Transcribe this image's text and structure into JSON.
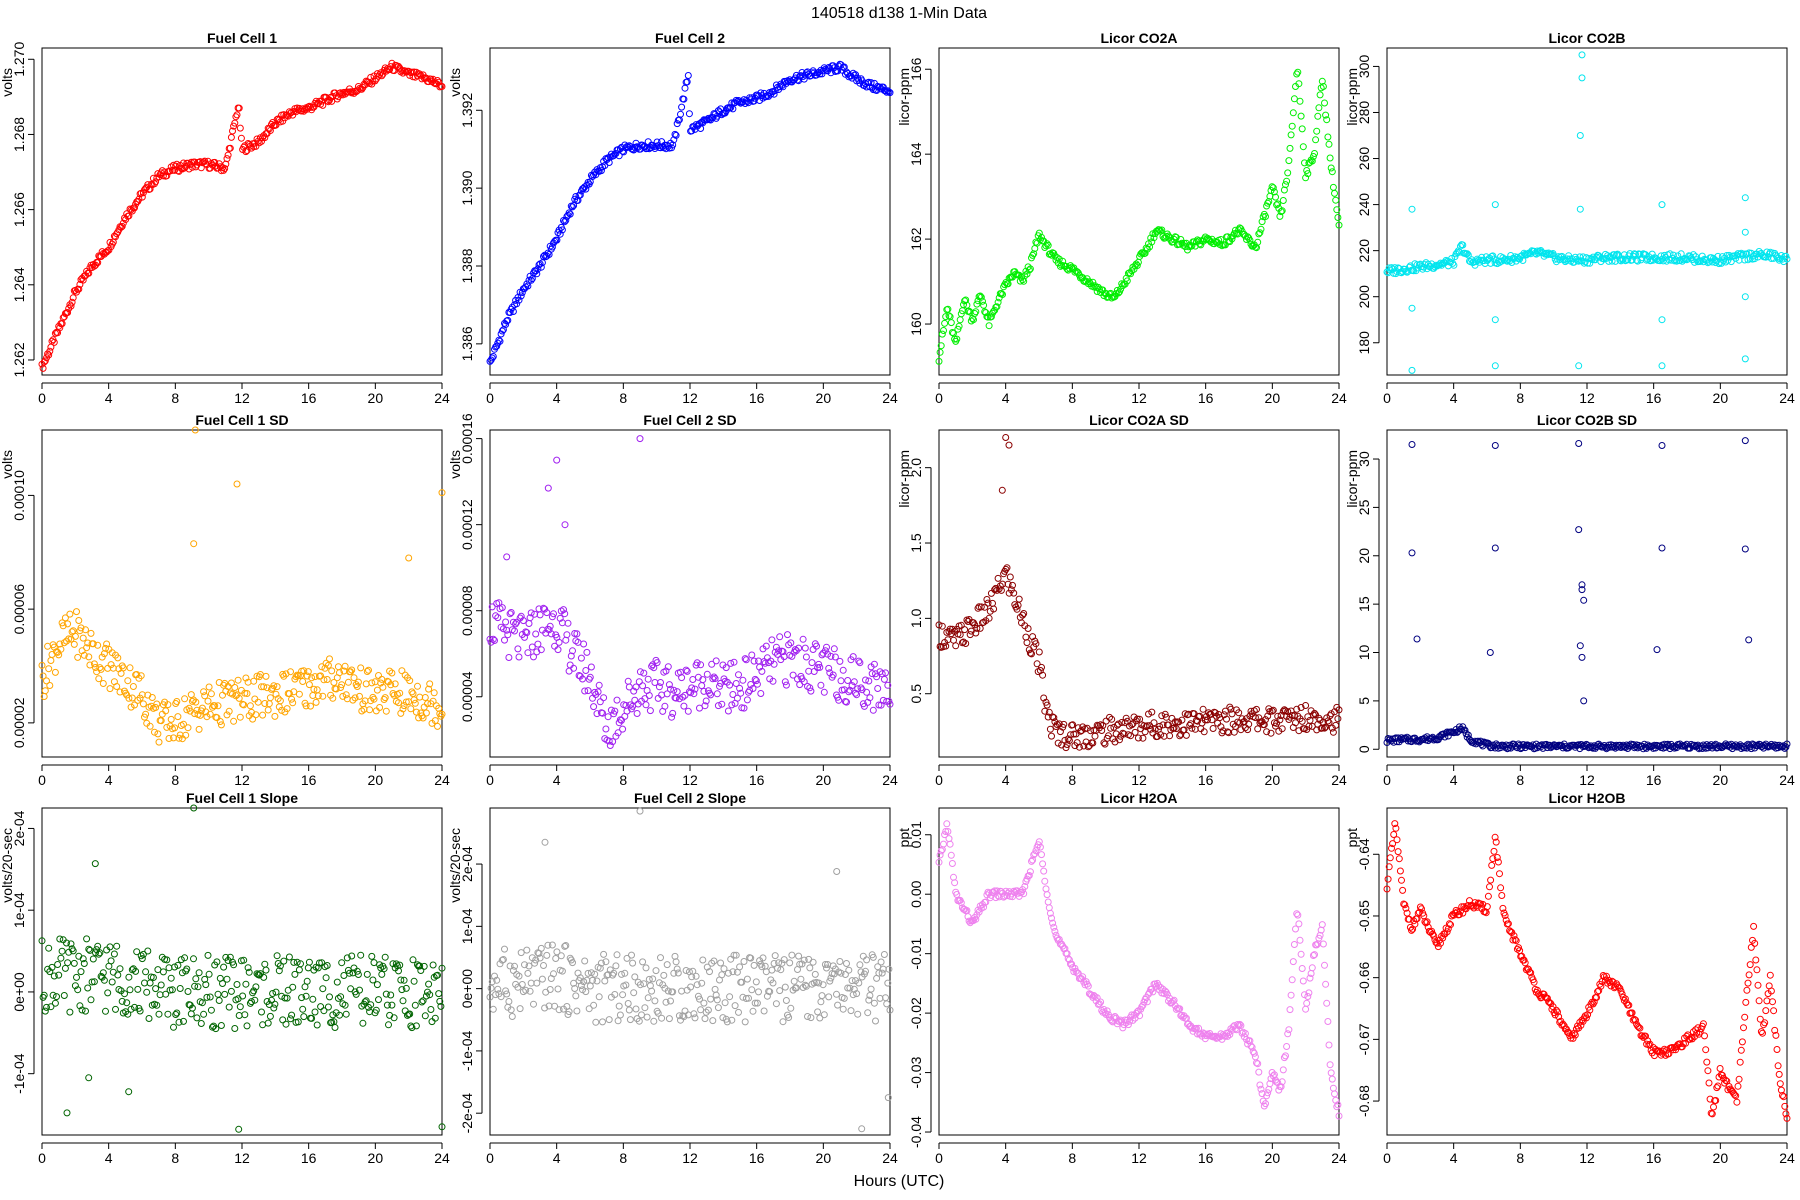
{
  "figure": {
    "title": "140518   d138   1-Min Data",
    "xlabel": "Hours (UTC)"
  },
  "chart_data": [
    {
      "type": "scatter",
      "title": "Fuel Cell 1",
      "ylabel": "volts",
      "xlim": [
        0,
        24
      ],
      "ylim": [
        1.2616,
        1.2703
      ],
      "xticks": [
        0,
        4,
        8,
        12,
        16,
        20,
        24
      ],
      "xtick_labels": [
        "0",
        "4",
        "8",
        "12",
        "16",
        "20",
        "24"
      ],
      "yticks": [
        1.262,
        1.264,
        1.266,
        1.268,
        1.27
      ],
      "ytick_labels": [
        "1.262",
        "1.264",
        "1.266",
        "1.268",
        "1.270"
      ],
      "color": "#ff0000",
      "x": [
        0,
        1,
        2,
        3,
        4,
        5,
        6,
        7,
        8,
        9,
        10,
        11,
        11.8,
        12,
        13,
        14,
        15,
        16,
        17,
        18,
        19,
        20,
        21,
        22,
        23,
        24
      ],
      "y": [
        1.2618,
        1.2628,
        1.2638,
        1.2645,
        1.265,
        1.2658,
        1.2664,
        1.2669,
        1.2671,
        1.2672,
        1.2672,
        1.2671,
        1.2688,
        1.2676,
        1.2678,
        1.2683,
        1.2686,
        1.2687,
        1.2689,
        1.2691,
        1.2692,
        1.2695,
        1.2698,
        1.2696,
        1.2695,
        1.2693
      ]
    },
    {
      "type": "scatter",
      "title": "Fuel Cell 2",
      "ylabel": "volts",
      "xlim": [
        0,
        24
      ],
      "ylim": [
        1.3852,
        1.3936
      ],
      "xticks": [
        0,
        4,
        8,
        12,
        16,
        20,
        24
      ],
      "xtick_labels": [
        "0",
        "4",
        "8",
        "12",
        "16",
        "20",
        "24"
      ],
      "yticks": [
        1.386,
        1.388,
        1.39,
        1.392
      ],
      "ytick_labels": [
        "1.386",
        "1.388",
        "1.390",
        "1.392"
      ],
      "color": "#0000ff",
      "x": [
        0,
        1,
        2,
        3,
        4,
        5,
        6,
        7,
        8,
        9,
        10,
        11,
        11.9,
        12,
        13,
        14,
        15,
        16,
        17,
        18,
        19,
        20,
        21,
        22,
        23,
        24
      ],
      "y": [
        1.3855,
        1.3866,
        1.3874,
        1.388,
        1.3887,
        1.3896,
        1.3902,
        1.3907,
        1.391,
        1.3911,
        1.3911,
        1.3911,
        1.3929,
        1.3915,
        1.3917,
        1.392,
        1.3922,
        1.3923,
        1.3925,
        1.3928,
        1.3929,
        1.393,
        1.3931,
        1.3928,
        1.3926,
        1.3925
      ]
    },
    {
      "type": "scatter",
      "title": "Licor CO2A",
      "ylabel": "licor-ppm",
      "xlim": [
        0,
        24
      ],
      "ylim": [
        158.8,
        166.5
      ],
      "xticks": [
        0,
        4,
        8,
        12,
        16,
        20,
        24
      ],
      "xtick_labels": [
        "0",
        "4",
        "8",
        "12",
        "16",
        "20",
        "24"
      ],
      "yticks": [
        160,
        162,
        164,
        166
      ],
      "ytick_labels": [
        "160",
        "162",
        "164",
        "166"
      ],
      "color": "#00ee00",
      "x": [
        0,
        0.5,
        1,
        1.5,
        2,
        2.5,
        3,
        3.5,
        4,
        4.5,
        5,
        5.5,
        6,
        6.5,
        7,
        8,
        9,
        10,
        10.5,
        11,
        12,
        12.5,
        13,
        14,
        15,
        16,
        17,
        18,
        19,
        20,
        20.5,
        21,
        21.5,
        22,
        22.5,
        23,
        23.5,
        24
      ],
      "y": [
        159.2,
        160.4,
        159.5,
        160.6,
        160.1,
        160.7,
        160.0,
        160.5,
        160.9,
        161.2,
        161.0,
        161.4,
        162.1,
        161.8,
        161.5,
        161.3,
        161.0,
        160.7,
        160.6,
        160.9,
        161.5,
        161.8,
        162.2,
        162.0,
        161.8,
        162.0,
        161.9,
        162.2,
        161.8,
        163.2,
        162.5,
        163.8,
        166.1,
        163.5,
        164.0,
        165.8,
        163.8,
        162.3
      ]
    },
    {
      "type": "scatter",
      "title": "Licor CO2B",
      "ylabel": "licor-ppm",
      "xlim": [
        0,
        24
      ],
      "ylim": [
        166,
        308
      ],
      "xticks": [
        0,
        4,
        8,
        12,
        16,
        20,
        24
      ],
      "xtick_labels": [
        "0",
        "4",
        "8",
        "12",
        "16",
        "20",
        "24"
      ],
      "yticks": [
        180,
        200,
        220,
        240,
        260,
        280,
        300
      ],
      "ytick_labels": [
        "180",
        "200",
        "220",
        "240",
        "260",
        "280",
        "300"
      ],
      "color": "#00e5ee",
      "x": [
        0,
        1,
        2,
        3,
        4,
        4.5,
        5,
        6,
        7,
        8,
        9,
        10,
        11,
        12,
        13,
        14,
        15,
        16,
        17,
        18,
        19,
        20,
        21,
        22,
        23,
        24
      ],
      "y": [
        211,
        212,
        213,
        214,
        215,
        222,
        215,
        216,
        216,
        217,
        219,
        217,
        216,
        216,
        217,
        217,
        217,
        217,
        217,
        217,
        216,
        216,
        217,
        218,
        218,
        216
      ],
      "outliers_x": [
        1.5,
        1.5,
        1.5,
        6.5,
        6.5,
        6.5,
        11.6,
        11.7,
        11.7,
        11.6,
        11.5,
        16.5,
        16.5,
        16.5,
        21.5,
        21.5,
        21.5,
        21.5
      ],
      "outliers_y": [
        238,
        195,
        168,
        240,
        190,
        170,
        238,
        305,
        295,
        270,
        170,
        240,
        190,
        170,
        243,
        228,
        200,
        173
      ]
    },
    {
      "type": "scatter",
      "title": "Fuel Cell 1 SD",
      "ylabel": "volts",
      "xlim": [
        0,
        24
      ],
      "ylim": [
        8e-06,
        0.000123
      ],
      "xticks": [
        0,
        4,
        8,
        12,
        16,
        20,
        24
      ],
      "xtick_labels": [
        "0",
        "4",
        "8",
        "12",
        "16",
        "20",
        "24"
      ],
      "yticks": [
        2e-05,
        6e-05,
        0.0001
      ],
      "ytick_labels": [
        "0.00002",
        "0.00006",
        "0.00010"
      ],
      "color": "#ffa500",
      "x": [
        0,
        1,
        2,
        3,
        4,
        5,
        6,
        7,
        8,
        9,
        10,
        11,
        12,
        13,
        14,
        15,
        16,
        17,
        18,
        19,
        20,
        21,
        22,
        23,
        24
      ],
      "y": [
        3.5e-05,
        4.8e-05,
        5.2e-05,
        4.5e-05,
        4e-05,
        3.5e-05,
        3e-05,
        2e-05,
        2e-05,
        2.4e-05,
        2.6e-05,
        2.7e-05,
        2.8e-05,
        2.9e-05,
        3e-05,
        3.1e-05,
        3.3e-05,
        3.5e-05,
        3.6e-05,
        3.2e-05,
        3e-05,
        3.1e-05,
        3e-05,
        2.8e-05,
        2.6e-05
      ],
      "spread": 8e-06,
      "outliers_x": [
        9.2,
        11.7,
        24,
        9.1,
        22
      ],
      "outliers_y": [
        0.000123,
        0.000104,
        0.000101,
        8.3e-05,
        7.8e-05
      ]
    },
    {
      "type": "scatter",
      "title": "Fuel Cell 2 SD",
      "ylabel": "volts",
      "xlim": [
        0,
        24
      ],
      "ylim": [
        1.2e-05,
        0.000164
      ],
      "xticks": [
        0,
        4,
        8,
        12,
        16,
        20,
        24
      ],
      "xtick_labels": [
        "0",
        "4",
        "8",
        "12",
        "16",
        "20",
        "24"
      ],
      "yticks": [
        4e-05,
        8e-05,
        0.00012,
        0.00016
      ],
      "ytick_labels": [
        "0.00004",
        "0.00008",
        "0.00012",
        "0.00016"
      ],
      "color": "#a020f0",
      "x": [
        0,
        1,
        2,
        3,
        4,
        5,
        6,
        7,
        8,
        9,
        10,
        11,
        12,
        13,
        14,
        15,
        16,
        17,
        18,
        19,
        20,
        21,
        22,
        23,
        24
      ],
      "y": [
        7.5e-05,
        7e-05,
        6.5e-05,
        7.2e-05,
        7.5e-05,
        6e-05,
        5e-05,
        2.5e-05,
        3.5e-05,
        4.5e-05,
        4.5e-05,
        4.2e-05,
        4.5e-05,
        4.8e-05,
        4.3e-05,
        4.5e-05,
        5e-05,
        5.5e-05,
        5.8e-05,
        5.5e-05,
        5.2e-05,
        5e-05,
        4.8e-05,
        4.5e-05,
        4.5e-05
      ],
      "spread": 1.2e-05,
      "outliers_x": [
        9.0,
        4.0,
        3.5,
        4.5,
        1.0
      ],
      "outliers_y": [
        0.00016,
        0.00015,
        0.000137,
        0.00012,
        0.000105
      ]
    },
    {
      "type": "scatter",
      "title": "Licor CO2A SD",
      "ylabel": "licor-ppm",
      "xlim": [
        0,
        24
      ],
      "ylim": [
        0.08,
        2.25
      ],
      "xticks": [
        0,
        4,
        8,
        12,
        16,
        20,
        24
      ],
      "xtick_labels": [
        "0",
        "4",
        "8",
        "12",
        "16",
        "20",
        "24"
      ],
      "yticks": [
        0.5,
        1.0,
        1.5,
        2.0
      ],
      "ytick_labels": [
        "0.5",
        "1.0",
        "1.5",
        "2.0"
      ],
      "color": "#8b0000",
      "x": [
        0,
        1,
        2,
        3,
        4,
        5,
        6,
        6.5,
        7,
        8,
        9,
        10,
        11,
        12,
        13,
        14,
        15,
        16,
        17,
        18,
        19,
        20,
        21,
        22,
        23,
        24
      ],
      "y": [
        0.9,
        0.85,
        0.95,
        1.05,
        1.3,
        1.0,
        0.7,
        0.35,
        0.25,
        0.22,
        0.23,
        0.25,
        0.27,
        0.28,
        0.3,
        0.3,
        0.3,
        0.31,
        0.32,
        0.33,
        0.33,
        0.32,
        0.33,
        0.35,
        0.34,
        0.32
      ],
      "spread": 0.09,
      "outliers_x": [
        4.0,
        4.2,
        3.8
      ],
      "outliers_y": [
        2.2,
        2.15,
        1.85
      ]
    },
    {
      "type": "scatter",
      "title": "Licor CO2B SD",
      "ylabel": "licor-ppm",
      "xlim": [
        0,
        24
      ],
      "ylim": [
        -0.8,
        33
      ],
      "xticks": [
        0,
        4,
        8,
        12,
        16,
        20,
        24
      ],
      "xtick_labels": [
        "0",
        "4",
        "8",
        "12",
        "16",
        "20",
        "24"
      ],
      "yticks": [
        0,
        5,
        10,
        15,
        20,
        25,
        30
      ],
      "ytick_labels": [
        "0",
        "5",
        "10",
        "15",
        "20",
        "25",
        "30"
      ],
      "color": "#000080",
      "x": [
        0,
        1,
        2,
        3,
        4,
        4.5,
        5,
        6,
        7,
        8,
        9,
        10,
        11,
        12,
        13,
        14,
        15,
        16,
        17,
        18,
        19,
        20,
        21,
        22,
        23,
        24
      ],
      "y": [
        0.9,
        1.0,
        1.0,
        1.2,
        1.8,
        2.2,
        1.0,
        0.4,
        0.3,
        0.3,
        0.3,
        0.3,
        0.3,
        0.3,
        0.3,
        0.3,
        0.3,
        0.3,
        0.3,
        0.3,
        0.3,
        0.3,
        0.3,
        0.3,
        0.3,
        0.3
      ],
      "spread": 0.25,
      "outliers_x": [
        1.5,
        1.5,
        1.8,
        6.5,
        6.5,
        6.2,
        11.5,
        11.5,
        11.7,
        11.7,
        11.8,
        11.6,
        11.7,
        11.8,
        16.5,
        16.5,
        16.2,
        21.5,
        21.5,
        21.7
      ],
      "outliers_y": [
        31.5,
        20.3,
        11.4,
        31.4,
        20.8,
        10.0,
        31.6,
        22.7,
        17.0,
        16.5,
        15.4,
        10.7,
        9.5,
        5.0,
        31.4,
        20.8,
        10.3,
        31.9,
        20.7,
        11.3
      ]
    },
    {
      "type": "scatter",
      "title": "Fuel Cell 1 Slope",
      "ylabel": "volts/20-sec",
      "xlim": [
        0,
        24
      ],
      "ylim": [
        -0.000175,
        0.000225
      ],
      "xticks": [
        0,
        4,
        8,
        12,
        16,
        20,
        24
      ],
      "xtick_labels": [
        "0",
        "4",
        "8",
        "12",
        "16",
        "20",
        "24"
      ],
      "yticks": [
        -0.0001,
        0,
        0.0001,
        0.0002
      ],
      "ytick_labels": [
        "-1e-04",
        "0e+00",
        "1e-04",
        "2e-04"
      ],
      "color": "#006400",
      "x": [
        0,
        2,
        4,
        6,
        8,
        10,
        12,
        14,
        16,
        18,
        20,
        22,
        24
      ],
      "y": [
        2e-05,
        2e-05,
        2e-05,
        1e-05,
        0.0,
        0.0,
        0.0,
        0.0,
        0.0,
        0.0,
        0.0,
        0.0,
        0.0
      ],
      "spread": 4.5e-05,
      "outliers_x": [
        9.1,
        3.2,
        1.5,
        5.2,
        11.8,
        24.0,
        2.8
      ],
      "outliers_y": [
        0.000225,
        0.000157,
        -0.000148,
        -0.000122,
        -0.000168,
        -0.000165,
        -0.000105
      ]
    },
    {
      "type": "scatter",
      "title": "Fuel Cell 2 Slope",
      "ylabel": "volts/20-sec",
      "xlim": [
        0,
        24
      ],
      "ylim": [
        -0.000235,
        0.00029
      ],
      "xticks": [
        0,
        4,
        8,
        12,
        16,
        20,
        24
      ],
      "xtick_labels": [
        "0",
        "4",
        "8",
        "12",
        "16",
        "20",
        "24"
      ],
      "yticks": [
        -0.0002,
        -0.0001,
        0,
        0.0001,
        0.0002
      ],
      "ytick_labels": [
        "-2e-04",
        "-1e-04",
        "0e+00",
        "1e-04",
        "2e-04"
      ],
      "color": "#a0a0a0",
      "x": [
        0,
        2,
        4,
        6,
        8,
        10,
        12,
        14,
        16,
        18,
        20,
        22,
        24
      ],
      "y": [
        1e-05,
        1e-05,
        2e-05,
        0.0,
        0.0,
        0.0,
        0.0,
        0.0,
        0.0,
        0.0,
        0.0,
        0.0,
        0.0
      ],
      "spread": 5.5e-05,
      "outliers_x": [
        9.0,
        3.3,
        22.3,
        23.9,
        20.8
      ],
      "outliers_y": [
        0.000285,
        0.000235,
        -0.000225,
        -0.000175,
        0.000188
      ]
    },
    {
      "type": "scatter",
      "title": "Licor H2OA",
      "ylabel": "ppt",
      "xlim": [
        0,
        24
      ],
      "ylim": [
        -0.0405,
        0.0145
      ],
      "xticks": [
        0,
        4,
        8,
        12,
        16,
        20,
        24
      ],
      "xtick_labels": [
        "0",
        "4",
        "8",
        "12",
        "16",
        "20",
        "24"
      ],
      "yticks": [
        -0.04,
        -0.03,
        -0.02,
        -0.01,
        0.0,
        0.01
      ],
      "ytick_labels": [
        "-0.04",
        "-0.03",
        "-0.02",
        "-0.01",
        "0.00",
        "0.01"
      ],
      "color": "#ee82ee",
      "x": [
        0,
        0.5,
        1,
        2,
        3,
        4,
        5,
        6,
        6.5,
        7,
        8,
        9,
        10,
        11,
        12,
        13,
        14,
        15,
        16,
        17,
        18,
        19,
        19.5,
        20,
        20.5,
        21,
        21.5,
        22,
        22.5,
        23,
        23.5,
        24
      ],
      "y": [
        0.005,
        0.012,
        0.0,
        -0.005,
        0.0,
        0.0,
        0.0,
        0.009,
        0.0,
        -0.007,
        -0.012,
        -0.016,
        -0.02,
        -0.022,
        -0.02,
        -0.015,
        -0.018,
        -0.022,
        -0.024,
        -0.024,
        -0.022,
        -0.027,
        -0.036,
        -0.03,
        -0.033,
        -0.022,
        -0.002,
        -0.02,
        -0.01,
        -0.005,
        -0.03,
        -0.037
      ]
    },
    {
      "type": "scatter",
      "title": "Licor H2OB",
      "ylabel": "ppt",
      "xlim": [
        0,
        24
      ],
      "ylim": [
        -0.6855,
        -0.6325
      ],
      "xticks": [
        0,
        4,
        8,
        12,
        16,
        20,
        24
      ],
      "xtick_labels": [
        "0",
        "4",
        "8",
        "12",
        "16",
        "20",
        "24"
      ],
      "yticks": [
        -0.68,
        -0.67,
        -0.66,
        -0.65,
        -0.64
      ],
      "ytick_labels": [
        "-0.68",
        "-0.67",
        "-0.66",
        "-0.65",
        "-0.64"
      ],
      "color": "#ff0000",
      "x": [
        0,
        0.5,
        1,
        1.5,
        2,
        3,
        4,
        5,
        6,
        6.5,
        7,
        8,
        9,
        10,
        11,
        12,
        13,
        14,
        15,
        16,
        17,
        18,
        19,
        19.5,
        20,
        20.5,
        21,
        21.5,
        22,
        22.5,
        23,
        23.5,
        24
      ],
      "y": [
        -0.645,
        -0.635,
        -0.648,
        -0.652,
        -0.649,
        -0.655,
        -0.65,
        -0.648,
        -0.649,
        -0.637,
        -0.65,
        -0.656,
        -0.662,
        -0.665,
        -0.67,
        -0.666,
        -0.66,
        -0.662,
        -0.668,
        -0.672,
        -0.672,
        -0.67,
        -0.668,
        -0.683,
        -0.675,
        -0.678,
        -0.68,
        -0.665,
        -0.652,
        -0.67,
        -0.66,
        -0.675,
        -0.683
      ]
    }
  ]
}
